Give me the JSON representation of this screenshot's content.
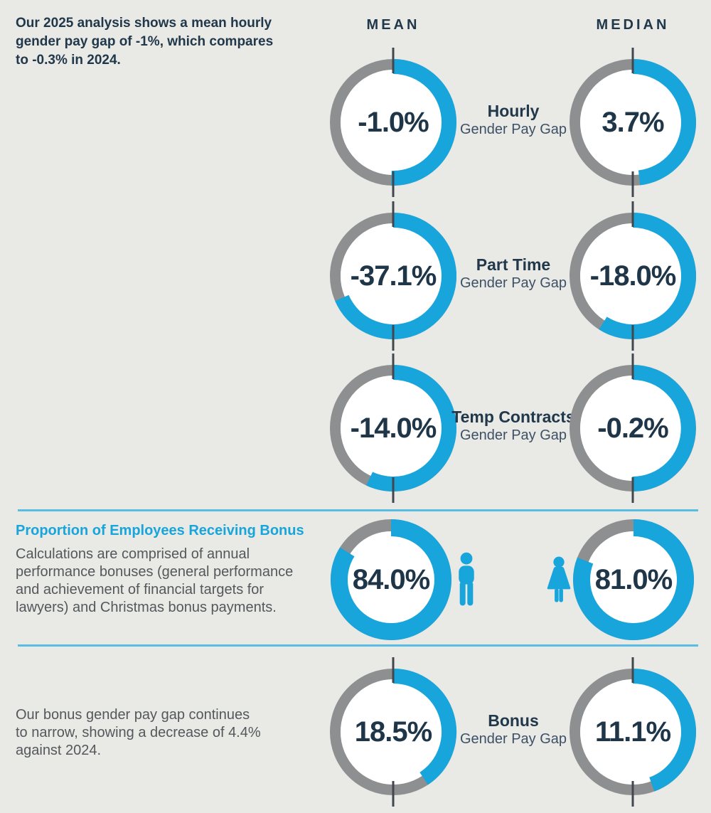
{
  "colors": {
    "background": "#E9E9E6",
    "blue": "#17A5DB",
    "gray": "#8D8F91",
    "navy": "#21384A",
    "value_navy": "#1F3649",
    "sublabel": "#3D5065",
    "body_gray": "#54585B",
    "tick": "#41474D",
    "divider": "#58BCE3",
    "donut_inner": "#FFFFFF"
  },
  "header": {
    "mean_label": "MEAN",
    "median_label": "MEDIAN"
  },
  "intro": {
    "text": "Our 2025 analysis shows a mean hourly\ngender pay gap of -1%, which compares\nto -0.3% in 2024."
  },
  "bonus_section": {
    "heading": "Proportion of Employees Receiving Bonus",
    "body": "Calculations are comprised of annual\nperformance bonuses (general performance\nand achievement of financial targets for\nlawyers) and Christmas bonus payments.",
    "male_icon": "male-person-pictogram",
    "female_icon": "female-person-pictogram"
  },
  "bottom_section": {
    "body": "Our bonus gender pay gap continues\nto narrow, showing a decrease of 4.4%\nagainst 2024."
  },
  "chart_data": {
    "type": "pie",
    "subtype": "donut-grid",
    "columns": [
      "MEAN",
      "MEDIAN"
    ],
    "value_encoding": {
      "gap": "blue arc fraction of circle = (100 - value)/200, starting at 12 o'clock sweeping clockwise; remainder gray; tick marks at top and bottom",
      "proportion": "blue arc fraction of circle = value/100, starting at 12 o'clock sweeping clockwise; remainder gray; no tick marks"
    },
    "rows": [
      {
        "label": "Hourly",
        "sublabel": "Gender Pay Gap",
        "mean": {
          "value": -1.0,
          "display": "-1.0%"
        },
        "median": {
          "value": 3.7,
          "display": "3.7%"
        }
      },
      {
        "label": "Part Time",
        "sublabel": "Gender Pay Gap",
        "mean": {
          "value": -37.1,
          "display": "-37.1%"
        },
        "median": {
          "value": -18.0,
          "display": "-18.0%"
        }
      },
      {
        "label": "Temp Contracts",
        "sublabel": "Gender Pay Gap",
        "mean": {
          "value": -14.0,
          "display": "-14.0%"
        },
        "median": {
          "value": -0.2,
          "display": "-0.2%"
        }
      },
      {
        "label": "Bonus",
        "sublabel": "Gender Pay Gap",
        "mean": {
          "value": 18.5,
          "display": "18.5%"
        },
        "median": {
          "value": 11.1,
          "display": "11.1%"
        }
      }
    ],
    "bonus_proportion": {
      "male": {
        "value": 84.0,
        "display": "84.0%"
      },
      "female": {
        "value": 81.0,
        "display": "81.0%"
      }
    }
  }
}
